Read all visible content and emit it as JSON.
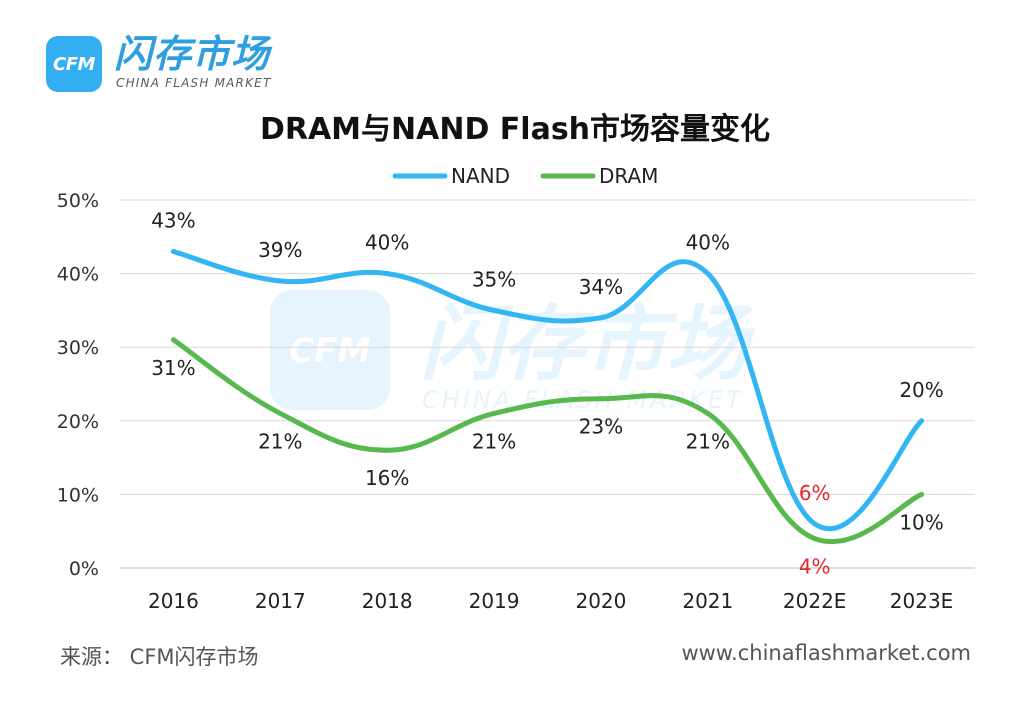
{
  "brand": {
    "badge": "CFM",
    "name": "闪存市场",
    "subtitle": "CHINA FLASH MARKET",
    "color": "#33aef0"
  },
  "footer": {
    "source": "来源：  CFM闪存市场",
    "website": "www.chinaflashmarket.com"
  },
  "chart_data": {
    "type": "line",
    "title": "DRAM与NAND Flash市场容量变化",
    "categories": [
      "2016",
      "2017",
      "2018",
      "2019",
      "2020",
      "2021",
      "2022E",
      "2023E"
    ],
    "series": [
      {
        "name": "NAND",
        "color": "#33b5f3",
        "values": [
          43,
          39,
          40,
          35,
          34,
          40,
          6,
          20
        ],
        "labels": [
          "43%",
          "39%",
          "40%",
          "35%",
          "34%",
          "40%",
          "6%",
          "20%"
        ],
        "label_colors": [
          "#222222",
          "#222222",
          "#222222",
          "#222222",
          "#222222",
          "#222222",
          "#e8262c",
          "#222222"
        ]
      },
      {
        "name": "DRAM",
        "color": "#57b84d",
        "values": [
          31,
          21,
          16,
          21,
          23,
          21,
          4,
          10
        ],
        "labels": [
          "31%",
          "21%",
          "16%",
          "21%",
          "23%",
          "21%",
          "4%",
          "10%"
        ],
        "label_colors": [
          "#222222",
          "#222222",
          "#222222",
          "#222222",
          "#222222",
          "#222222",
          "#e8262c",
          "#222222"
        ]
      }
    ],
    "yticks": [
      "0%",
      "10%",
      "20%",
      "30%",
      "40%",
      "50%"
    ],
    "ylim": [
      0,
      50
    ],
    "grid": true,
    "legend": "top-center",
    "smooth": true
  }
}
